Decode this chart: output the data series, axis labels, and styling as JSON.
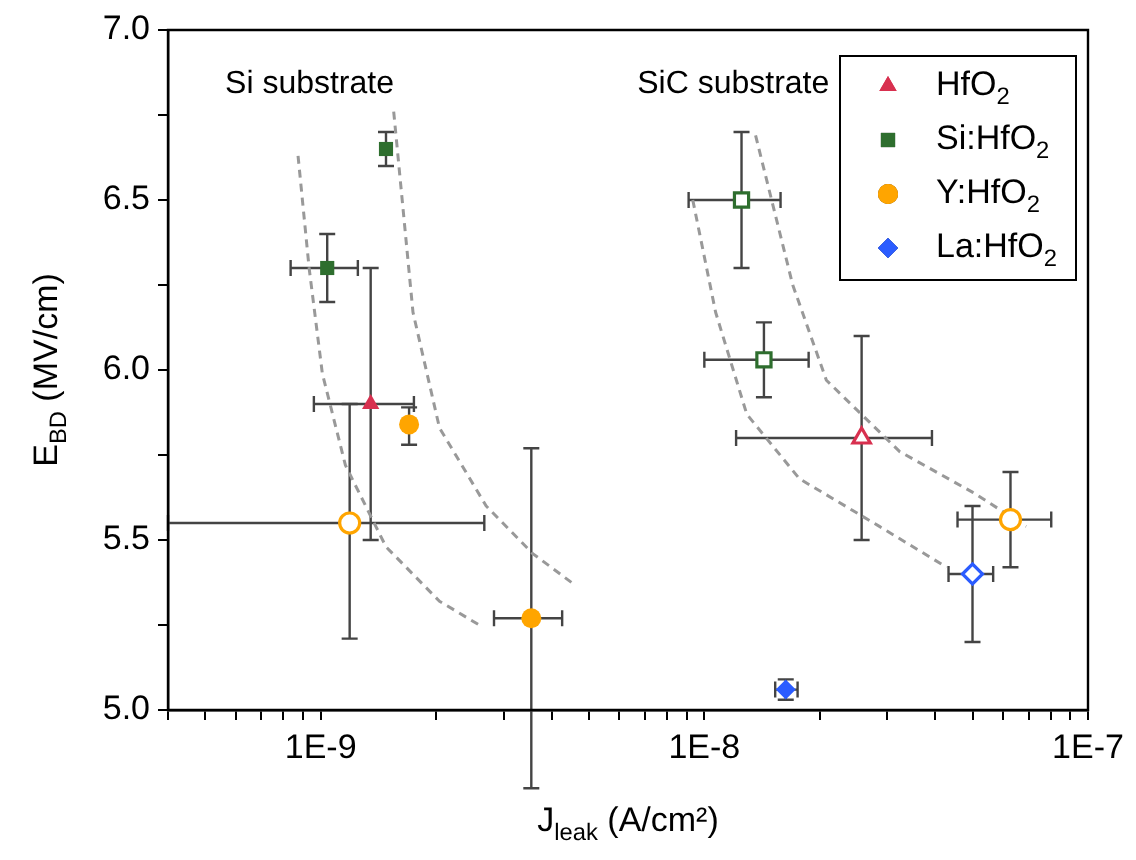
{
  "chart_data": {
    "type": "scatter",
    "xlabel": "J$_{leak}$ (A/cm²)",
    "ylabel": "E$_{BD}$ (MV/cm)",
    "log": "x",
    "grid": false,
    "legend": "top right",
    "xlim": [
      4e-10,
      1e-07
    ],
    "ylim": [
      5,
      7
    ],
    "xticks": [
      {
        "value": 4e-10,
        "label": null
      },
      {
        "value": 5e-10,
        "label": null
      },
      {
        "value": 6e-10,
        "label": null
      },
      {
        "value": 7e-10,
        "label": null
      },
      {
        "value": 8e-10,
        "label": null
      },
      {
        "value": 9e-10,
        "label": null
      },
      {
        "value": 1e-09,
        "label": "1E-9"
      },
      {
        "value": 2e-09,
        "label": null
      },
      {
        "value": 3e-09,
        "label": null
      },
      {
        "value": 4e-09,
        "label": null
      },
      {
        "value": 5e-09,
        "label": null
      },
      {
        "value": 6e-09,
        "label": null
      },
      {
        "value": 7e-09,
        "label": null
      },
      {
        "value": 8e-09,
        "label": null
      },
      {
        "value": 9e-09,
        "label": null
      },
      {
        "value": 1e-08,
        "label": "1E-8"
      },
      {
        "value": 2e-08,
        "label": null
      },
      {
        "value": 3e-08,
        "label": null
      },
      {
        "value": 4e-08,
        "label": null
      },
      {
        "value": 5e-08,
        "label": null
      },
      {
        "value": 6e-08,
        "label": null
      },
      {
        "value": 7e-08,
        "label": null
      },
      {
        "value": 8e-08,
        "label": null
      },
      {
        "value": 9e-08,
        "label": null
      },
      {
        "value": 1e-07,
        "label": "1E-7"
      }
    ],
    "yticks": [
      {
        "value": 5,
        "label": "5.0"
      },
      {
        "value": 5.25,
        "label": null
      },
      {
        "value": 5.5,
        "label": "5.5"
      },
      {
        "value": 5.75,
        "label": null
      },
      {
        "value": 6,
        "label": "6.0"
      },
      {
        "value": 6.25,
        "label": null
      },
      {
        "value": 6.5,
        "label": "6.5"
      },
      {
        "value": 6.75,
        "label": null
      },
      {
        "value": 7,
        "label": "7.0"
      }
    ],
    "annotations": [
      "Si substrate",
      "SiC substrate"
    ],
    "series": [
      {
        "type": "line",
        "color": "#999999",
        "line_style": "dashed",
        "marker": "none",
        "x": [
          8.73e-10,
          9.33e-10,
          1.01e-09,
          1.16e-09,
          1.48e-09,
          2.04e-09,
          2.59e-09
        ],
        "values": [
          6.63,
          6.3,
          5.99,
          5.72,
          5.48,
          5.32,
          5.25
        ]
      },
      {
        "type": "line",
        "color": "#999999",
        "line_style": "dashed",
        "marker": "none",
        "x": [
          1.55e-09,
          1.74e-09,
          2.04e-09,
          2.7e-09,
          3.57e-09,
          4.57e-09
        ],
        "values": [
          6.76,
          6.17,
          5.83,
          5.6,
          5.46,
          5.37
        ]
      },
      {
        "type": "line",
        "color": "#999999",
        "line_style": "dashed",
        "marker": "none",
        "x": [
          9.33e-09,
          1.07e-08,
          1.29e-08,
          1.77e-08,
          2.86e-08,
          4.28e-08
        ],
        "values": [
          6.5,
          6.17,
          5.87,
          5.68,
          5.54,
          5.42
        ]
      },
      {
        "type": "line",
        "color": "#999999",
        "line_style": "dashed",
        "marker": "none",
        "x": [
          1.36e-08,
          1.7e-08,
          2.08e-08,
          3.23e-08,
          5.01e-08,
          6.9e-08
        ],
        "values": [
          6.69,
          6.25,
          5.97,
          5.76,
          5.64,
          5.54
        ]
      },
      {
        "type": "scatter",
        "name": "HfO$_{2}$",
        "color": "#d8304f",
        "marker": "triangle",
        "x": [
          1.35e-09
        ],
        "values": [
          5.9
        ],
        "errors": [
          [
            5.5,
            6.3
          ]
        ],
        "xerrors": [
          [
            9.6e-10,
            1.75e-09
          ]
        ]
      },
      {
        "type": "scatter",
        "name": "Si:HfO$_{2}$",
        "color": "#2e6e2e",
        "marker": "square",
        "x": [
          1.48e-09,
          1.04e-09
        ],
        "values": [
          6.65,
          6.3
        ],
        "errors": [
          [
            6.6,
            6.7
          ],
          [
            6.2,
            6.4
          ]
        ],
        "xerrors": [
          null,
          [
            8.35e-10,
            1.25e-09
          ]
        ]
      },
      {
        "type": "scatter",
        "name": "Y:HfO$_{2}$",
        "color": "#ffa500",
        "marker": "circle",
        "x": [
          1.7e-09,
          3.54e-09
        ],
        "values": [
          5.84,
          5.27
        ],
        "errors": [
          [
            5.78,
            5.89
          ],
          [
            4.77,
            5.77
          ]
        ],
        "xerrors": [
          null,
          [
            2.83e-09,
            4.26e-09
          ]
        ]
      },
      {
        "type": "scatter",
        "name": "La:HfO$_{2}$",
        "color": "#2b5cff",
        "marker": "diamond",
        "x": [
          1.63e-08
        ],
        "values": [
          5.06
        ],
        "errors": [
          [
            5.03,
            5.09
          ]
        ],
        "xerrors": [
          [
            1.53e-08,
            1.75e-08
          ]
        ]
      },
      {
        "type": "scatter",
        "color": "#d8304f",
        "marker": "triangle",
        "x": [
          2.57e-08
        ],
        "values": [
          5.8
        ],
        "errors": [
          [
            5.5,
            6.1
          ]
        ],
        "xerrors": [
          [
            1.21e-08,
            3.92e-08
          ]
        ]
      },
      {
        "type": "scatter",
        "color": "#2e6e2e",
        "marker": "square",
        "x": [
          1.25e-08,
          1.43e-08
        ],
        "values": [
          6.5,
          6.03
        ],
        "errors": [
          [
            6.3,
            6.7
          ],
          [
            5.92,
            6.14
          ]
        ],
        "xerrors": [
          [
            9.1e-09,
            1.58e-08
          ],
          [
            1e-08,
            1.87e-08
          ]
        ]
      },
      {
        "type": "scatter",
        "color": "#ffa500",
        "marker": "circle",
        "x": [
          1.19e-09,
          6.28e-08
        ],
        "values": [
          5.55,
          5.56
        ],
        "errors": [
          [
            5.21,
            5.9
          ],
          [
            5.42,
            5.7
          ]
        ],
        "xerrors": [
          [
            4e-10,
            2.67e-09
          ],
          [
            4.57e-08,
            8.02e-08
          ]
        ]
      },
      {
        "type": "scatter",
        "color": "#2b5cff",
        "marker": "diamond",
        "x": [
          5e-08
        ],
        "values": [
          5.4
        ],
        "errors": [
          [
            5.2,
            5.6
          ]
        ],
        "xerrors": [
          [
            4.33e-08,
            5.66e-08
          ]
        ]
      }
    ]
  }
}
